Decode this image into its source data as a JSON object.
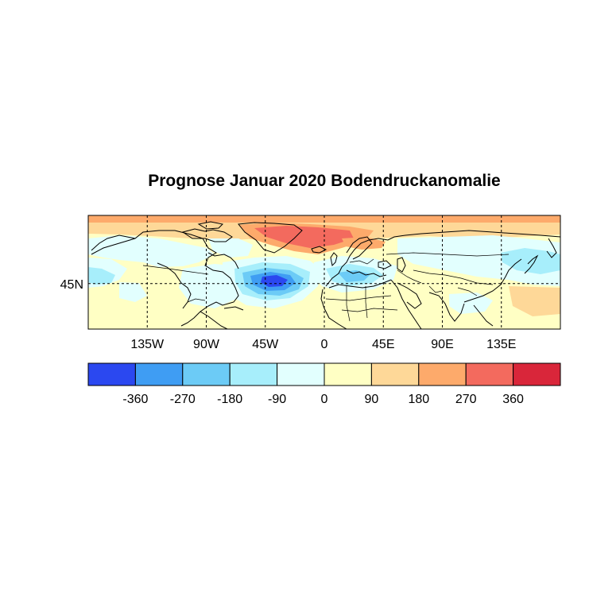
{
  "title": "Prognose Januar 2020 Bodendruckanomalie",
  "map": {
    "projection": "cylindrical-equidistant",
    "x_ticks": [
      "135W",
      "90W",
      "45W",
      "0",
      "45E",
      "90E",
      "135E"
    ],
    "x_tick_values": [
      -135,
      -90,
      -45,
      0,
      45,
      90,
      135
    ],
    "y_ticks": [
      "45N"
    ],
    "y_tick_values": [
      45
    ],
    "lon_range": [
      -180,
      180
    ],
    "lat_range": [
      15,
      90
    ],
    "grid": "dashed"
  },
  "legend": {
    "labels": [
      "-360",
      "-270",
      "-180",
      "-90",
      "0",
      "90",
      "180",
      "270",
      "360"
    ],
    "colors": [
      "#2b48f0",
      "#3f9df3",
      "#6ccbf6",
      "#a7eefb",
      "#e2fffe",
      "#ffffc4",
      "#fed898",
      "#fdaa6b",
      "#f36a5e",
      "#d9263a"
    ]
  },
  "anomaly_features": [
    {
      "region": "arctic-north-band",
      "sign": "positive",
      "level": 180
    },
    {
      "region": "greenland-iceland-high",
      "sign": "positive",
      "level": 270
    },
    {
      "region": "central-atlantic-low",
      "sign": "negative",
      "level": -360
    },
    {
      "region": "mediterranean-low",
      "sign": "negative",
      "level": -180
    },
    {
      "region": "north-pacific-east-asia-low",
      "sign": "negative",
      "level": -180
    },
    {
      "region": "north-america-west-low",
      "sign": "negative",
      "level": -90
    }
  ]
}
